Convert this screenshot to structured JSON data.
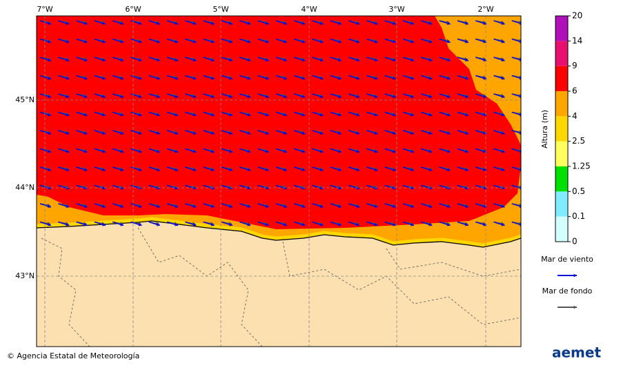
{
  "map": {
    "lon_labels": [
      "7°W",
      "6°W",
      "5°W",
      "4°W",
      "3°W",
      "2°W"
    ],
    "lat_labels": [
      "45°N",
      "44°N",
      "43°N"
    ],
    "colorbar": {
      "title": "Altura (m)",
      "levels": [
        0,
        0.1,
        0.5,
        1.25,
        2.5,
        4,
        6,
        9,
        14,
        20
      ],
      "colors": [
        "#d4ffff",
        "#80ecff",
        "#00e000",
        "#ffff60",
        "#ffd700",
        "#ffa500",
        "#ff0000",
        "#e8106e",
        "#b010b8"
      ]
    },
    "legend": [
      {
        "label": "Mar de viento",
        "color": "#0a0ad8"
      },
      {
        "label": "Mar de fondo",
        "color": "#555555"
      }
    ]
  },
  "footer": {
    "credit": "© Agencia Estatal de Meteorología",
    "logo": "aemet"
  }
}
